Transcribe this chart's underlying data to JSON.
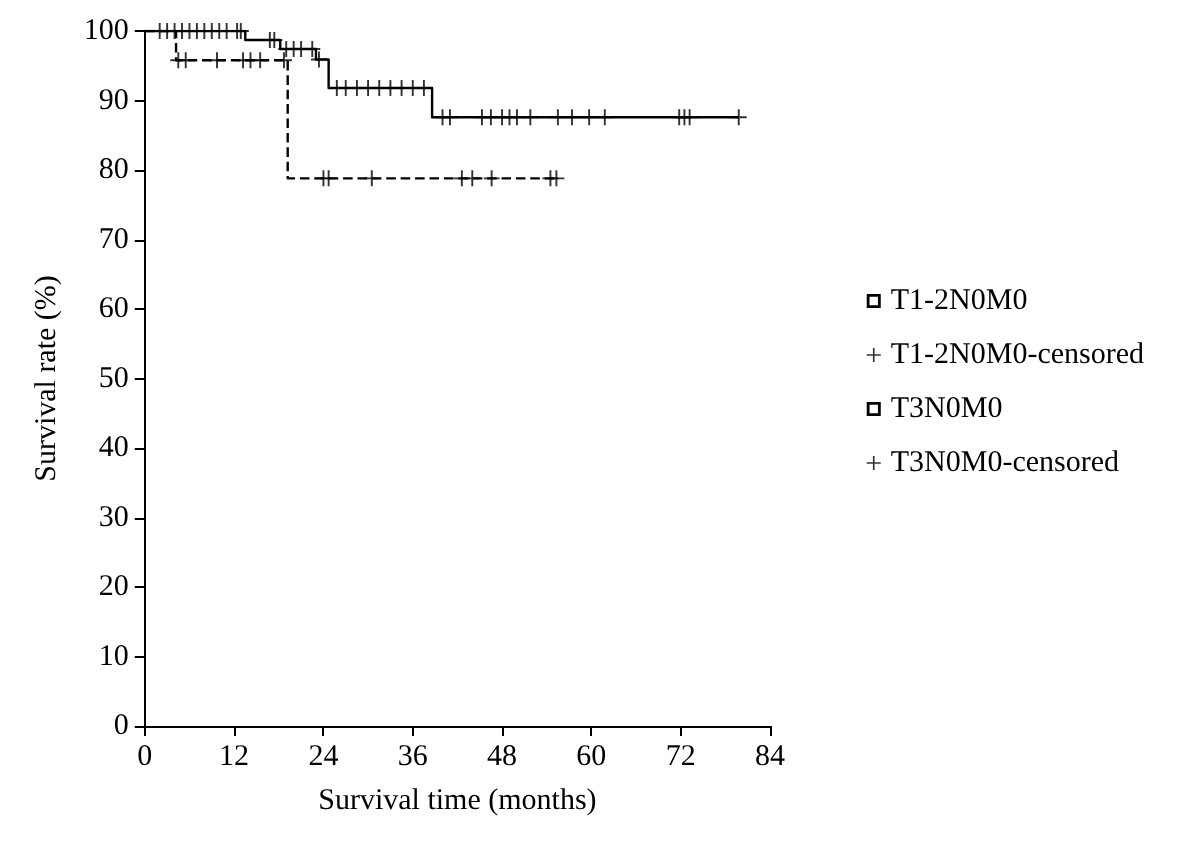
{
  "chart_data": {
    "type": "step",
    "xlabel": "Survival time (months)",
    "ylabel": "Survival rate (%)",
    "xlim": [
      0,
      84
    ],
    "xticks": [
      0,
      12,
      24,
      36,
      48,
      60,
      72,
      84
    ],
    "ylim": [
      0,
      100
    ],
    "yticks": [
      0,
      10,
      20,
      30,
      40,
      50,
      60,
      70,
      80,
      90,
      100
    ],
    "grid": false,
    "legend": "right",
    "series": [
      {
        "name": "T1-2N0M0",
        "color": "#000000",
        "line_style": "solid",
        "x": [
          0,
          13.5,
          18.2,
          23,
          24.7,
          38.6,
          79.8
        ],
        "values": [
          100,
          98.7,
          97.4,
          95.9,
          91.8,
          87.6,
          87.6
        ]
      },
      {
        "name": "T1-2N0M0-censored",
        "type": "scatter",
        "marker": "cross",
        "color": "#000000",
        "x": [
          2,
          3,
          4,
          5,
          6,
          7,
          8,
          9,
          10,
          11,
          12.4,
          12.9,
          16.8,
          17.4,
          19,
          20,
          21,
          22.5,
          23.4,
          25.8,
          27,
          28.5,
          30,
          31.5,
          33,
          34.5,
          36,
          37.5,
          40,
          41,
          45.3,
          46.5,
          48,
          49,
          50,
          51.8,
          55.5,
          57.4,
          59.7,
          61.8,
          71.8,
          72.5,
          73.2,
          79.8
        ],
        "values": [
          100,
          100,
          100,
          100,
          100,
          100,
          100,
          100,
          100,
          100,
          100,
          100,
          98.7,
          98.7,
          97.4,
          97.4,
          97.4,
          97.4,
          95.9,
          91.8,
          91.8,
          91.8,
          91.8,
          91.8,
          91.8,
          91.8,
          91.8,
          91.8,
          87.6,
          87.6,
          87.6,
          87.6,
          87.6,
          87.6,
          87.6,
          87.6,
          87.6,
          87.6,
          87.6,
          87.6,
          87.6,
          87.6,
          87.6,
          87.6
        ]
      },
      {
        "name": "T3N0M0",
        "color": "#000000",
        "line_style": "dashed",
        "x": [
          0,
          4.2,
          19.2,
          55.3
        ],
        "values": [
          100,
          95.8,
          78.8,
          78.8
        ]
      },
      {
        "name": "T3N0M0-censored",
        "type": "scatter",
        "marker": "cross",
        "color": "#000000",
        "x": [
          4.5,
          5.5,
          9.7,
          13.2,
          14.2,
          15.5,
          18.7,
          24,
          24.7,
          30.5,
          42.6,
          44,
          46.6,
          54.5,
          55.3
        ],
        "values": [
          95.8,
          95.8,
          95.8,
          95.8,
          95.8,
          95.8,
          95.8,
          78.8,
          78.8,
          78.8,
          78.8,
          78.8,
          78.8,
          78.8,
          78.8
        ]
      }
    ]
  }
}
